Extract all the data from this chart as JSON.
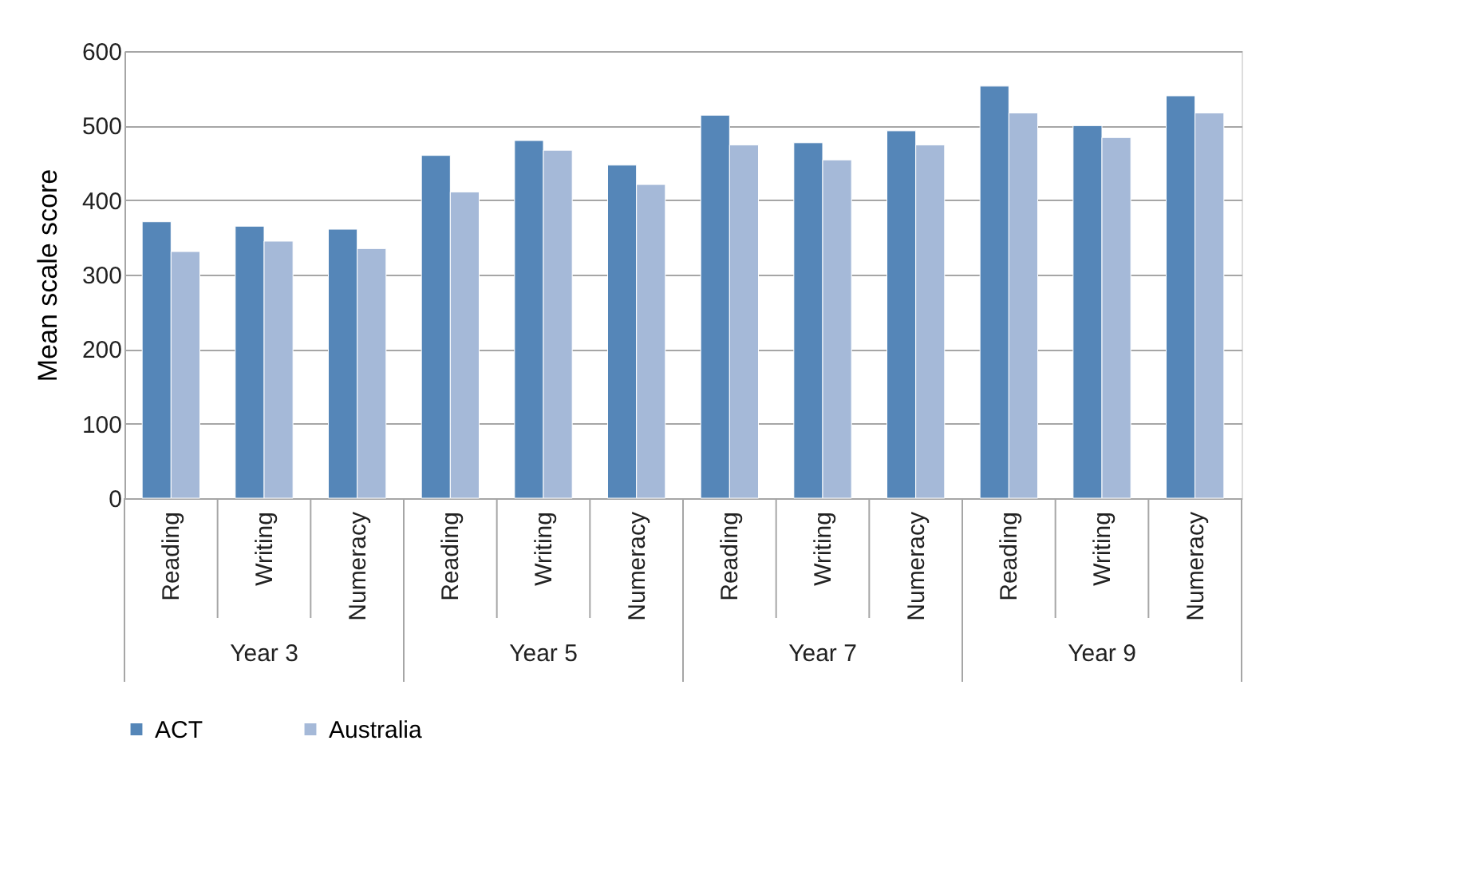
{
  "chart_data": {
    "type": "bar",
    "ylabel": "Mean scale score",
    "categories": [
      "Reading",
      "Writing",
      "Numeracy",
      "Reading",
      "Writing",
      "Numeracy",
      "Reading",
      "Writing",
      "Numeracy",
      "Reading",
      "Writing",
      "Numeracy"
    ],
    "annotations": [
      "Year 3",
      "Year 5",
      "Year 7",
      "Year 9"
    ],
    "series": [
      {
        "name": "ACT",
        "color": "#5586b8",
        "values": [
          371,
          365,
          361,
          460,
          480,
          447,
          514,
          477,
          493,
          553,
          500,
          540
        ]
      },
      {
        "name": "Australia",
        "color": "#a5b9d8",
        "values": [
          331,
          345,
          335,
          411,
          467,
          421,
          474,
          454,
          474,
          517,
          484,
          517
        ]
      }
    ],
    "ylim": [
      0,
      600
    ],
    "yticks": [
      0,
      100,
      200,
      300,
      400,
      500,
      600
    ],
    "grid": "y",
    "legend": "bottom"
  }
}
